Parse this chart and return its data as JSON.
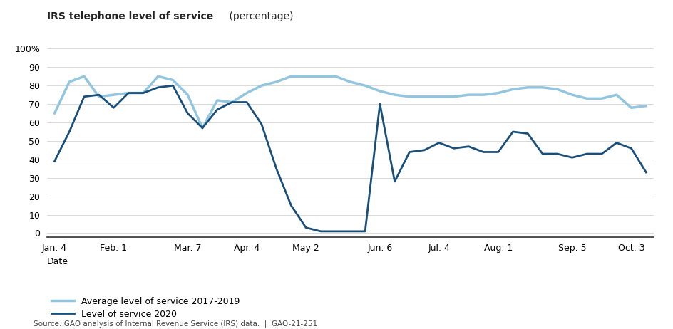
{
  "title_bold": "IRS telephone level of service",
  "title_normal": " (percentage)",
  "xlabel": "Date",
  "source": "Source: GAO analysis of Internal Revenue Service (IRS) data.  |  GAO-21-251",
  "yticks": [
    0,
    10,
    20,
    30,
    40,
    50,
    60,
    70,
    80,
    90,
    100
  ],
  "ytick_labels": [
    "0",
    "10",
    "20",
    "30",
    "40",
    "50",
    "60",
    "70",
    "80",
    "90",
    "100%"
  ],
  "xtick_labels": [
    "Jan. 4",
    "Feb. 1",
    "Mar. 7",
    "Apr. 4",
    "May 2",
    "Jun. 6",
    "Jul. 4",
    "Aug. 1",
    "Sep. 5",
    "Oct. 3"
  ],
  "xtick_positions": [
    0,
    4,
    9,
    13,
    17,
    22,
    26,
    30,
    35,
    39
  ],
  "ylim": [
    -2,
    105
  ],
  "xlim": [
    -0.5,
    40.5
  ],
  "legend": [
    "Average level of service 2017-2019",
    "Level of service 2020"
  ],
  "avg_color": "#92c5de",
  "los_color": "#1a4f7a",
  "avg_linewidth": 2.5,
  "los_linewidth": 2.0,
  "x_values": [
    0,
    1,
    2,
    3,
    4,
    5,
    6,
    7,
    8,
    9,
    10,
    11,
    12,
    13,
    14,
    15,
    16,
    17,
    18,
    19,
    20,
    21,
    22,
    23,
    24,
    25,
    26,
    27,
    28,
    29,
    30,
    31,
    32,
    33,
    34,
    35,
    36,
    37,
    38,
    39,
    40
  ],
  "avg_line": [
    65,
    82,
    85,
    74,
    75,
    76,
    76,
    85,
    83,
    75,
    57,
    72,
    71,
    76,
    80,
    82,
    85,
    85,
    85,
    85,
    82,
    80,
    77,
    75,
    74,
    74,
    74,
    74,
    75,
    75,
    76,
    78,
    79,
    79,
    78,
    75,
    73,
    73,
    75,
    68,
    69
  ],
  "los_line": [
    39,
    55,
    74,
    75,
    68,
    76,
    76,
    79,
    80,
    65,
    57,
    67,
    71,
    71,
    59,
    35,
    15,
    3,
    1,
    1,
    1,
    1,
    70,
    28,
    44,
    45,
    49,
    46,
    47,
    44,
    44,
    55,
    54,
    43,
    43,
    41,
    43,
    43,
    49,
    46,
    33
  ],
  "background_color": "#ffffff",
  "grid_color": "#cccccc"
}
